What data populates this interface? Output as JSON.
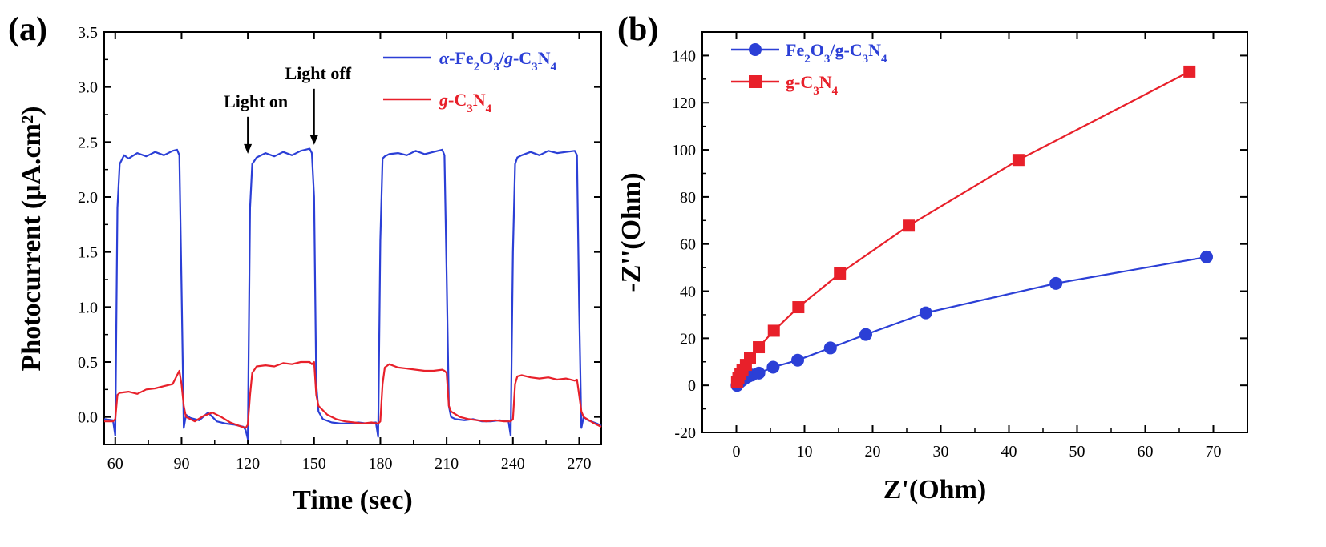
{
  "chart_data": [
    {
      "panel": "(a)",
      "type": "line",
      "xlabel": "Time (sec)",
      "ylabel": "Photocurrent  (μA.cm²)",
      "xlim": [
        55,
        280
      ],
      "ylim": [
        -0.25,
        3.5
      ],
      "xticks": [
        60,
        90,
        120,
        150,
        180,
        210,
        240,
        270
      ],
      "yticks": [
        0.0,
        0.5,
        1.0,
        1.5,
        2.0,
        2.5,
        3.0,
        3.5
      ],
      "xtick_labels": [
        "60",
        "90",
        "120",
        "150",
        "180",
        "210",
        "240",
        "270"
      ],
      "ytick_labels": [
        "0.0",
        "0.5",
        "1.0",
        "1.5",
        "2.0",
        "2.5",
        "3.0",
        "3.5"
      ],
      "legend_position": "top-right",
      "grid": false,
      "series": [
        {
          "name": "α-Fe2O3/g-C3N4",
          "color": "#2b3fd6",
          "x": [
            55,
            59,
            60,
            61,
            62,
            64,
            66,
            70,
            74,
            78,
            82,
            86,
            88,
            89,
            90,
            91,
            92,
            94,
            98,
            102,
            106,
            110,
            114,
            118,
            119,
            120,
            121,
            122,
            124,
            128,
            132,
            136,
            140,
            144,
            148,
            149,
            150,
            151,
            152,
            154,
            158,
            162,
            166,
            170,
            174,
            178,
            179,
            180,
            181,
            182,
            184,
            188,
            192,
            196,
            200,
            204,
            208,
            209,
            210,
            211,
            212,
            214,
            218,
            222,
            226,
            230,
            234,
            238,
            239,
            240,
            241,
            242,
            244,
            248,
            252,
            256,
            260,
            264,
            268,
            269,
            270,
            271,
            272,
            274,
            278,
            280
          ],
          "y": [
            -0.02,
            -0.03,
            -0.17,
            1.9,
            2.3,
            2.38,
            2.35,
            2.4,
            2.37,
            2.41,
            2.38,
            2.42,
            2.43,
            2.38,
            1.2,
            -0.1,
            0.02,
            -0.01,
            -0.03,
            0.04,
            -0.04,
            -0.06,
            -0.07,
            -0.09,
            -0.12,
            -0.2,
            1.9,
            2.3,
            2.36,
            2.4,
            2.37,
            2.41,
            2.38,
            2.42,
            2.44,
            2.4,
            2.0,
            0.3,
            0.05,
            -0.02,
            -0.05,
            -0.06,
            -0.06,
            -0.05,
            -0.06,
            -0.05,
            -0.18,
            1.6,
            2.35,
            2.37,
            2.39,
            2.4,
            2.38,
            2.42,
            2.39,
            2.41,
            2.43,
            2.38,
            1.3,
            0.1,
            0.0,
            -0.02,
            -0.03,
            -0.02,
            -0.04,
            -0.04,
            -0.03,
            -0.04,
            -0.17,
            1.5,
            2.3,
            2.36,
            2.38,
            2.41,
            2.38,
            2.42,
            2.4,
            2.41,
            2.42,
            2.38,
            1.0,
            -0.1,
            0.0,
            -0.03,
            -0.06,
            -0.08
          ]
        },
        {
          "name": "g-C3N4",
          "color": "#e8202a",
          "x": [
            55,
            59,
            60,
            61,
            62,
            66,
            70,
            74,
            78,
            82,
            86,
            88,
            89,
            90,
            91,
            92,
            96,
            100,
            104,
            108,
            112,
            116,
            119,
            120,
            121,
            122,
            124,
            128,
            132,
            136,
            140,
            144,
            148,
            149,
            150,
            151,
            152,
            156,
            160,
            164,
            168,
            172,
            176,
            179,
            180,
            181,
            182,
            184,
            188,
            192,
            196,
            200,
            204,
            208,
            209,
            210,
            211,
            212,
            216,
            220,
            224,
            228,
            232,
            236,
            239,
            240,
            241,
            242,
            244,
            248,
            252,
            256,
            260,
            264,
            268,
            269,
            270,
            271,
            272,
            276,
            280
          ],
          "y": [
            -0.04,
            -0.04,
            -0.02,
            0.2,
            0.22,
            0.23,
            0.21,
            0.25,
            0.26,
            0.28,
            0.3,
            0.38,
            0.42,
            0.3,
            0.1,
            0.0,
            -0.04,
            0.01,
            0.04,
            0.0,
            -0.05,
            -0.08,
            -0.1,
            -0.07,
            0.2,
            0.4,
            0.46,
            0.47,
            0.46,
            0.49,
            0.48,
            0.5,
            0.5,
            0.48,
            0.5,
            0.2,
            0.1,
            0.02,
            -0.02,
            -0.04,
            -0.05,
            -0.06,
            -0.05,
            -0.06,
            -0.04,
            0.3,
            0.45,
            0.48,
            0.45,
            0.44,
            0.43,
            0.42,
            0.42,
            0.43,
            0.42,
            0.4,
            0.1,
            0.05,
            0.0,
            -0.02,
            -0.03,
            -0.04,
            -0.03,
            -0.04,
            -0.04,
            -0.02,
            0.3,
            0.37,
            0.38,
            0.36,
            0.35,
            0.36,
            0.34,
            0.35,
            0.33,
            0.34,
            0.2,
            0.05,
            0.0,
            -0.05,
            -0.09
          ]
        }
      ],
      "annotations": [
        {
          "text": "Light on",
          "x": 120,
          "y": 2.38
        },
        {
          "text": "Light off",
          "x": 150,
          "y": 2.46
        }
      ]
    },
    {
      "panel": "(b)",
      "type": "line",
      "xlabel": "Z'(Ohm)",
      "ylabel": "-Z''(Ohm)",
      "xlim": [
        -5,
        75
      ],
      "ylim": [
        -20,
        150
      ],
      "xticks": [
        0,
        10,
        20,
        30,
        40,
        50,
        60,
        70
      ],
      "yticks": [
        -20,
        0,
        20,
        40,
        60,
        80,
        100,
        120,
        140
      ],
      "xtick_labels": [
        "0",
        "10",
        "20",
        "30",
        "40",
        "50",
        "60",
        "70"
      ],
      "ytick_labels": [
        "-20",
        "0",
        "20",
        "40",
        "60",
        "80",
        "100",
        "120",
        "140"
      ],
      "legend_position": "top-left",
      "grid": false,
      "series": [
        {
          "name": "Fe2O3/g-C3N4",
          "color": "#2b3fd6",
          "marker": "circle",
          "x": [
            0.1,
            0.3,
            0.6,
            0.9,
            1.3,
            1.8,
            2.3,
            3.3,
            5.4,
            9.0,
            13.8,
            19.0,
            27.8,
            46.9,
            69.0
          ],
          "y": [
            0.0,
            0.8,
            1.6,
            2.3,
            3.1,
            3.9,
            4.4,
            5.2,
            7.7,
            10.7,
            15.9,
            21.6,
            30.8,
            43.3,
            54.5
          ]
        },
        {
          "name": "g-C3N4",
          "color": "#e8202a",
          "marker": "square",
          "x": [
            0.1,
            0.3,
            0.6,
            0.9,
            1.4,
            2.0,
            3.3,
            5.5,
            9.1,
            15.2,
            25.3,
            41.4,
            66.5
          ],
          "y": [
            1.5,
            3.2,
            4.8,
            6.4,
            8.7,
            11.5,
            16.2,
            23.2,
            33.2,
            47.5,
            67.8,
            95.7,
            133.2
          ]
        }
      ]
    }
  ]
}
